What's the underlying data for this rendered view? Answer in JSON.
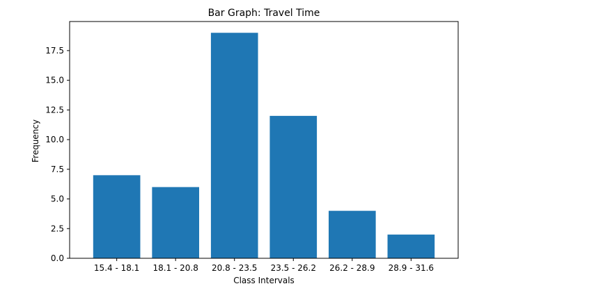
{
  "chart_data": {
    "type": "bar",
    "title": "Bar Graph: Travel Time",
    "xlabel": "Class Intervals",
    "ylabel": "Frequency",
    "categories": [
      "15.4 - 18.1",
      "18.1 - 20.8",
      "20.8 - 23.5",
      "23.5 - 26.2",
      "26.2 - 28.9",
      "28.9 - 31.6"
    ],
    "values": [
      7,
      6,
      19,
      12,
      4,
      2
    ],
    "ylim": [
      0,
      19.95
    ],
    "yticks": [
      0.0,
      2.5,
      5.0,
      7.5,
      10.0,
      12.5,
      15.0,
      17.5
    ],
    "ytick_labels": [
      "0.0",
      "2.5",
      "5.0",
      "7.5",
      "10.0",
      "12.5",
      "15.0",
      "17.5"
    ],
    "bar_color": "#1f77b4",
    "grid": false,
    "legend": "none"
  }
}
